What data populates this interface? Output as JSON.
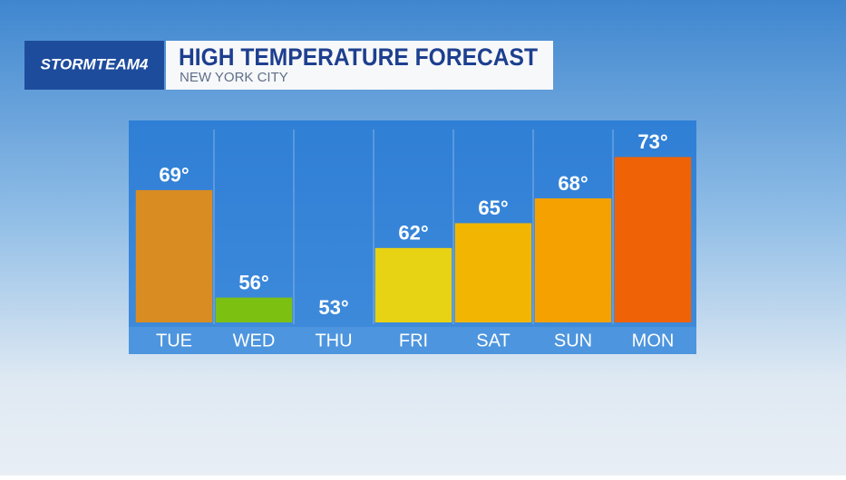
{
  "brand": "STORMTEAM4",
  "chart_data": {
    "type": "bar",
    "title": "HIGH TEMPERATURE FORECAST",
    "subtitle": "NEW YORK CITY",
    "categories": [
      "TUE",
      "WED",
      "THU",
      "FRI",
      "SAT",
      "SUN",
      "MON"
    ],
    "values": [
      69,
      56,
      53,
      62,
      65,
      68,
      73
    ],
    "value_labels": [
      "69°",
      "56°",
      "53°",
      "62°",
      "65°",
      "68°",
      "73°"
    ],
    "colors": [
      "#d98c22",
      "#7cc012",
      "#6fb0e8",
      "#e8d214",
      "#f2b602",
      "#f5a102",
      "#f06206"
    ],
    "ylim": [
      53,
      76
    ]
  }
}
